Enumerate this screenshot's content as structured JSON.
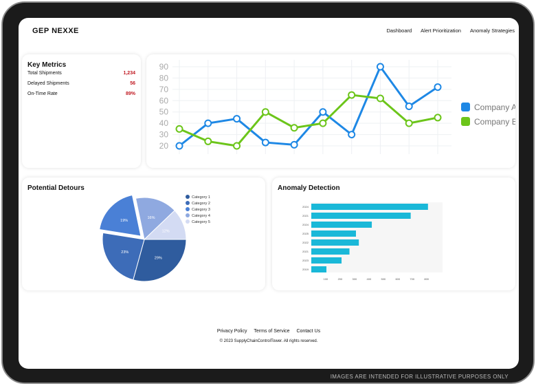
{
  "header": {
    "logo": "GEP NEXXE",
    "nav": [
      "Dashboard",
      "Alert Prioritization",
      "Anomaly Strategies"
    ]
  },
  "key_metrics": {
    "title": "Key Metrics",
    "items": [
      {
        "label": "Total Shipments",
        "value": "1,234"
      },
      {
        "label": "Delayed Shipments",
        "value": "56"
      },
      {
        "label": "On-Time Rate",
        "value": "89%"
      }
    ]
  },
  "detours": {
    "title": "Potential Detours"
  },
  "anomaly": {
    "title": "Anomaly Detection"
  },
  "footer": {
    "links": [
      "Privacy Policy",
      "Terms of Service",
      "Contact Us"
    ],
    "copyright": "© 2023 SupplyChainControlTower. All rights reserved."
  },
  "watermark": "IMAGES ARE INTENDED FOR ILLUSTRATIVE PURPOSES ONLY",
  "chart_data": [
    {
      "type": "line",
      "ylim": [
        15,
        95
      ],
      "yticks": [
        20,
        30,
        40,
        50,
        60,
        70,
        80,
        90
      ],
      "grid": true,
      "legend": "right",
      "series": [
        {
          "name": "Company A",
          "color": "#1e88e5",
          "values": [
            20,
            40,
            44,
            23,
            21,
            50,
            30,
            90,
            55,
            72
          ]
        },
        {
          "name": "Company B",
          "color": "#6cc51a",
          "values": [
            35,
            24,
            20,
            50,
            36,
            40,
            65,
            62,
            40,
            45
          ]
        }
      ]
    },
    {
      "type": "pie",
      "legend": "right",
      "categories": [
        "Category 1",
        "Category 2",
        "Category 3",
        "Category 4",
        "Category 5"
      ],
      "values": [
        29,
        23,
        19,
        16,
        12
      ],
      "labels": [
        "29%",
        "23%",
        "19%",
        "16%",
        "12%"
      ],
      "colors": [
        "#2f5c9e",
        "#3d6cb8",
        "#4a80d6",
        "#8fa9e0",
        "#d3dbf3"
      ],
      "exploded": "Category 3"
    },
    {
      "type": "bar",
      "orientation": "horizontal",
      "categories": [
        "2024",
        "2021",
        "2024",
        "2025",
        "2022",
        "2021",
        "2023",
        "2019"
      ],
      "values": [
        810,
        690,
        420,
        310,
        330,
        265,
        210,
        105
      ],
      "xticks": [
        "100",
        "200",
        "300",
        "400",
        "500",
        "600",
        "700",
        "800"
      ],
      "xlim": [
        0,
        830
      ],
      "color": "#1ab8d8"
    }
  ]
}
